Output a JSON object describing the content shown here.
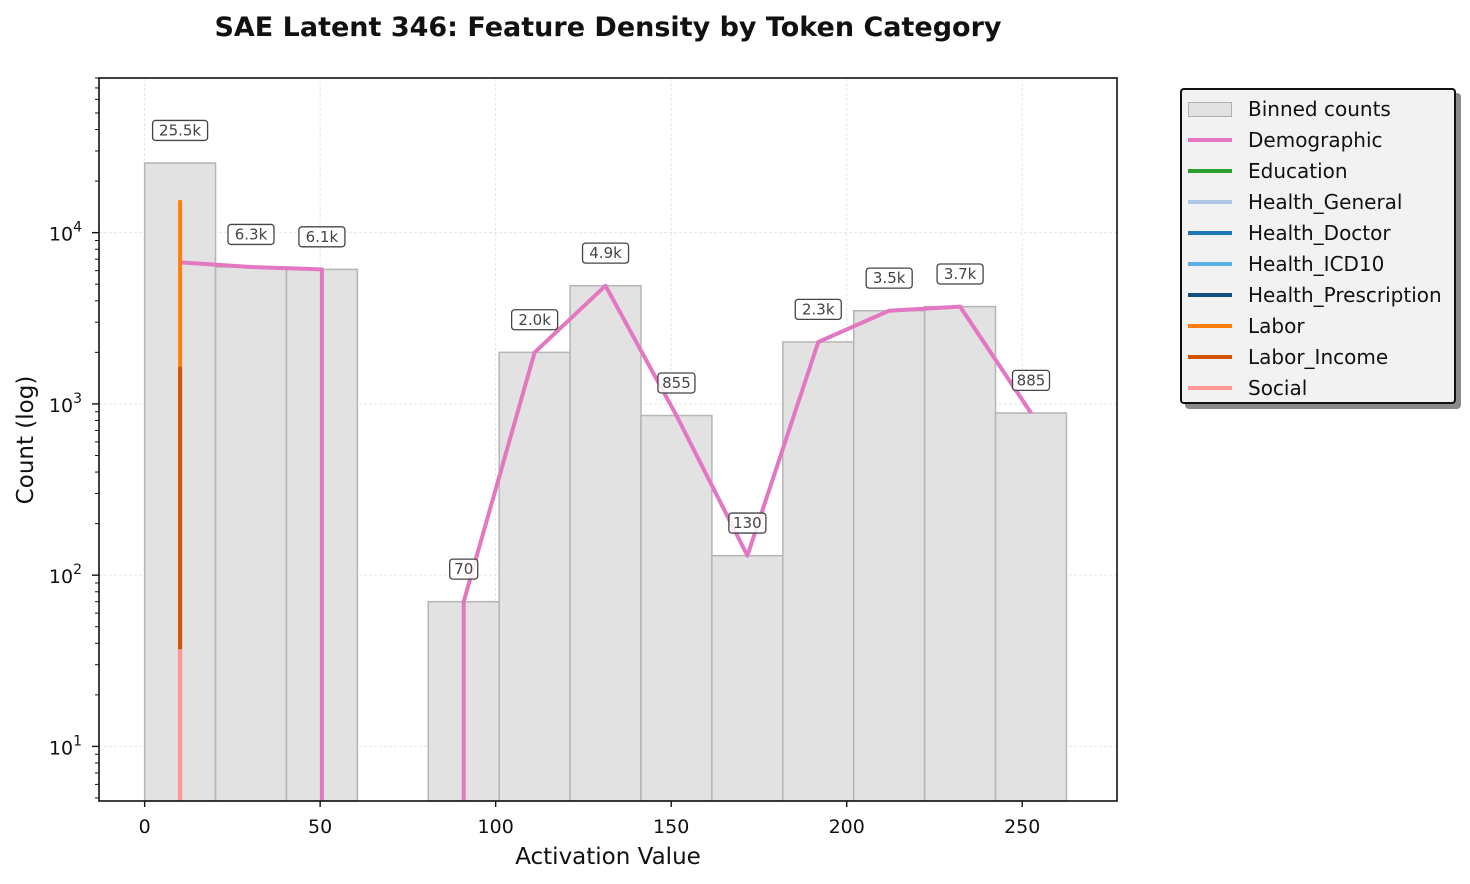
{
  "chart_data": {
    "type": "bar",
    "title": "SAE Latent 346: Feature Density by Token Category",
    "xlabel": "Activation Value",
    "ylabel": "Count (log)",
    "xlim": [
      -13,
      277
    ],
    "ylim": [
      4.8,
      80000
    ],
    "yscale": "log",
    "grid": true,
    "legend_placement": "outside-right",
    "x_ticks": [
      0,
      50,
      100,
      150,
      200,
      250
    ],
    "y_ticks": [
      {
        "value": 10,
        "base": "10",
        "exp": "1"
      },
      {
        "value": 100,
        "base": "10",
        "exp": "2"
      },
      {
        "value": 1000,
        "base": "10",
        "exp": "3"
      },
      {
        "value": 10000,
        "base": "10",
        "exp": "4"
      }
    ],
    "bins": [
      {
        "x0": 0,
        "x1": 20.2,
        "count": 25500,
        "label": "25.5k"
      },
      {
        "x0": 20.2,
        "x1": 40.4,
        "count": 6300,
        "label": "6.3k"
      },
      {
        "x0": 40.4,
        "x1": 60.6,
        "count": 6100,
        "label": "6.1k"
      },
      {
        "x0": 80.8,
        "x1": 101,
        "count": 70,
        "label": "70"
      },
      {
        "x0": 101,
        "x1": 121.2,
        "count": 2000,
        "label": "2.0k"
      },
      {
        "x0": 121.2,
        "x1": 141.4,
        "count": 4900,
        "label": "4.9k"
      },
      {
        "x0": 141.4,
        "x1": 161.6,
        "count": 855,
        "label": "855"
      },
      {
        "x0": 161.6,
        "x1": 181.8,
        "count": 130,
        "label": "130"
      },
      {
        "x0": 181.8,
        "x1": 202,
        "count": 2300,
        "label": "2.3k"
      },
      {
        "x0": 202,
        "x1": 222.2,
        "count": 3500,
        "label": "3.5k"
      },
      {
        "x0": 222.2,
        "x1": 242.4,
        "count": 3700,
        "label": "3.7k"
      },
      {
        "x0": 242.4,
        "x1": 262.6,
        "count": 885,
        "label": "885"
      }
    ],
    "series": [
      {
        "name": "Demographic",
        "color": "#e377c2",
        "x": [
          10.1,
          30.3,
          50.5,
          50.5
        ],
        "y": [
          6700,
          6300,
          6100,
          4.8
        ],
        "x2": [
          90.9,
          90.9,
          111.1,
          131.3,
          151.5,
          171.7,
          191.9,
          212.1,
          232.3,
          252.5
        ],
        "y2": [
          4.8,
          70,
          2000,
          4900,
          855,
          130,
          2300,
          3500,
          3700,
          885
        ]
      },
      {
        "name": "Education",
        "color": "#2ca02c",
        "x": [],
        "y": []
      },
      {
        "name": "Health_General",
        "color": "#aec7e8",
        "x": [],
        "y": []
      },
      {
        "name": "Health_Doctor",
        "color": "#1f77b4",
        "x": [],
        "y": []
      },
      {
        "name": "Health_ICD10",
        "color": "#5dade2",
        "x": [],
        "y": []
      },
      {
        "name": "Health_Prescription",
        "color": "#154f80",
        "x": [],
        "y": []
      },
      {
        "name": "Labor",
        "color": "#ff7f0e",
        "x": [
          10.1,
          10.1
        ],
        "y": [
          4.8,
          15500
        ]
      },
      {
        "name": "Labor_Income",
        "color": "#d35400",
        "x": [
          10.1,
          10.1
        ],
        "y": [
          37,
          1650
        ]
      },
      {
        "name": "Social",
        "color": "#ff9896",
        "x": [
          10.1,
          10.1
        ],
        "y": [
          4.8,
          37
        ]
      }
    ],
    "legend": [
      {
        "label": "Binned counts",
        "kind": "patch",
        "color": "#e2e2e2"
      },
      {
        "label": "Demographic",
        "kind": "line",
        "color": "#e377c2"
      },
      {
        "label": "Education",
        "kind": "line",
        "color": "#2ca02c"
      },
      {
        "label": "Health_General",
        "kind": "line",
        "color": "#aec7e8"
      },
      {
        "label": "Health_Doctor",
        "kind": "line",
        "color": "#1f77b4"
      },
      {
        "label": "Health_ICD10",
        "kind": "line",
        "color": "#5dade2"
      },
      {
        "label": "Health_Prescription",
        "kind": "line",
        "color": "#154f80"
      },
      {
        "label": "Labor",
        "kind": "line",
        "color": "#ff7f0e"
      },
      {
        "label": "Labor_Income",
        "kind": "line",
        "color": "#d35400"
      },
      {
        "label": "Social",
        "kind": "line",
        "color": "#ff9896"
      }
    ]
  }
}
